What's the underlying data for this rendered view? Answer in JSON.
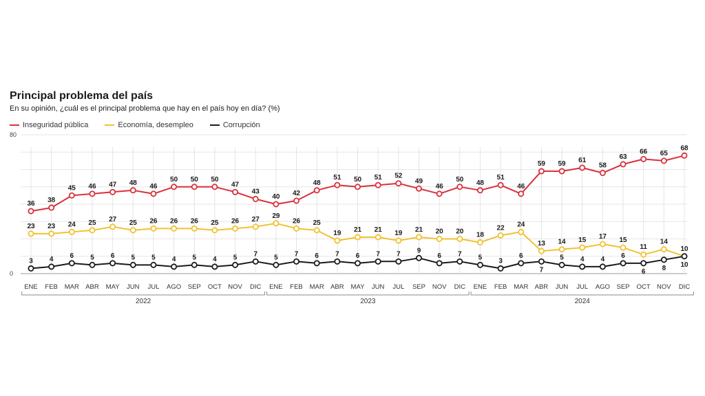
{
  "chart_data": {
    "type": "line",
    "title": "Principal problema del país",
    "subtitle": "En su opinión, ¿cuál es el principal problema que hay en el país hoy en día? (%)",
    "ylim": [
      0,
      80
    ],
    "y_tick_labels": [
      "0",
      "80"
    ],
    "grid": true,
    "legend_position": "top-left",
    "categories": [
      "ENE",
      "FEB",
      "MAR",
      "ABR",
      "MAY",
      "JUN",
      "JUL",
      "AGO",
      "SEP",
      "OCT",
      "NOV",
      "DIC",
      "ENE",
      "FEB",
      "MAR",
      "ABR",
      "MAY",
      "JUN",
      "JUL",
      "SEP",
      "NOV",
      "DIC",
      "ENE",
      "FEB",
      "MAR",
      "ABR",
      "JUN",
      "JUL",
      "AGO",
      "SEP",
      "OCT",
      "NOV",
      "DIC"
    ],
    "years": [
      {
        "label": "2022",
        "start": 0,
        "end": 11
      },
      {
        "label": "2023",
        "start": 12,
        "end": 21
      },
      {
        "label": "2024",
        "start": 22,
        "end": 32
      }
    ],
    "series": [
      {
        "name": "Inseguridad pública",
        "color": "#d9303a",
        "label_position": "above",
        "values": [
          36,
          38,
          45,
          46,
          47,
          48,
          46,
          50,
          50,
          50,
          47,
          43,
          40,
          42,
          48,
          51,
          50,
          51,
          52,
          49,
          46,
          50,
          48,
          51,
          46,
          59,
          59,
          61,
          58,
          63,
          66,
          65,
          68
        ]
      },
      {
        "name": "Economía, desempleo",
        "color": "#f2c12e",
        "label_position": "above",
        "values": [
          23,
          23,
          24,
          25,
          27,
          25,
          26,
          26,
          26,
          25,
          26,
          27,
          29,
          26,
          25,
          19,
          21,
          21,
          19,
          21,
          20,
          20,
          18,
          22,
          24,
          13,
          14,
          15,
          17,
          15,
          11,
          14,
          10
        ]
      },
      {
        "name": "Corrupción",
        "color": "#1a1a1a",
        "label_position": "above",
        "label_below_indices": [
          25,
          30,
          31,
          32
        ],
        "values": [
          3,
          4,
          6,
          5,
          6,
          5,
          5,
          4,
          5,
          4,
          5,
          7,
          5,
          7,
          6,
          7,
          6,
          7,
          7,
          9,
          6,
          7,
          5,
          3,
          6,
          7,
          5,
          4,
          4,
          6,
          6,
          8,
          10
        ]
      }
    ]
  }
}
